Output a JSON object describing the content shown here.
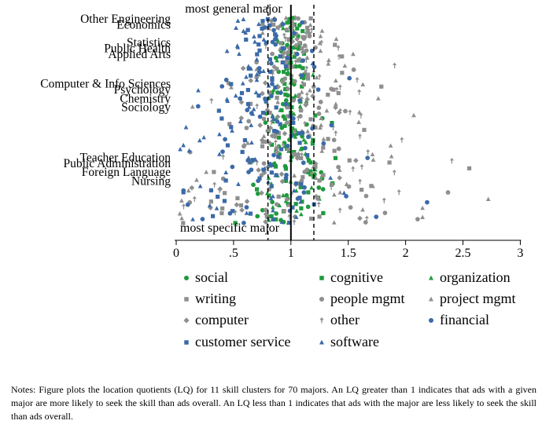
{
  "chart_data": {
    "type": "scatter",
    "xlim": [
      0,
      3.1
    ],
    "x_ticks": [
      0,
      0.5,
      1,
      1.5,
      2,
      2.5,
      3
    ],
    "x_tick_labels": [
      "0",
      ".5",
      "1",
      "1.5",
      "2",
      "2.5",
      "3"
    ],
    "grid": false,
    "reference_lines": [
      {
        "x": 1,
        "style": "solid",
        "label": ""
      },
      {
        "x": 0.8,
        "style": "dashed",
        "label": ""
      },
      {
        "x": 1.2,
        "style": "dashed",
        "label": ""
      }
    ],
    "annotations": {
      "top": "most general major",
      "bottom": "most specific major"
    },
    "num_majors": 70,
    "major_labels": [
      {
        "label": "Other Engineering",
        "rank": 1
      },
      {
        "label": "Economics",
        "rank": 3
      },
      {
        "label": "Statistics",
        "rank": 9
      },
      {
        "label": "Public Health",
        "rank": 11
      },
      {
        "label": "Applied Arts",
        "rank": 13
      },
      {
        "label": "Computer & Info Sciences",
        "rank": 23
      },
      {
        "label": "Psychology",
        "rank": 25
      },
      {
        "label": "Chemistry",
        "rank": 28
      },
      {
        "label": "Sociology",
        "rank": 31
      },
      {
        "label": "Teacher Education",
        "rank": 48
      },
      {
        "label": "Public Administration",
        "rank": 50
      },
      {
        "label": "Foreign Language",
        "rank": 53
      },
      {
        "label": "Nursing",
        "rank": 56
      }
    ],
    "series": [
      {
        "name": "social",
        "marker": "circle",
        "color": "#1f9a3c",
        "center": 1.0,
        "spread": 0.14
      },
      {
        "name": "cognitive",
        "marker": "square",
        "color": "#1f9a3c",
        "center": 1.02,
        "spread": 0.13
      },
      {
        "name": "organization",
        "marker": "triangle",
        "color": "#1f9a3c",
        "center": 0.98,
        "spread": 0.12
      },
      {
        "name": "writing",
        "marker": "square",
        "color": "#8f8f8f",
        "center": 1.1,
        "spread": 0.3
      },
      {
        "name": "people mgmt",
        "marker": "circle",
        "color": "#8f8f8f",
        "center": 1.0,
        "spread": 0.3
      },
      {
        "name": "project mgmt",
        "marker": "triangle",
        "color": "#8f8f8f",
        "center": 1.2,
        "spread": 0.45
      },
      {
        "name": "computer",
        "marker": "diamond",
        "color": "#8f8f8f",
        "center": 0.95,
        "spread": 0.28
      },
      {
        "name": "other",
        "marker": "arrow",
        "color": "#8f8f8f",
        "center": 1.1,
        "spread": 0.42
      },
      {
        "name": "financial",
        "marker": "circle",
        "color": "#3b6aa8",
        "center": 0.9,
        "spread": 0.35
      },
      {
        "name": "customer service",
        "marker": "square",
        "color": "#3b6aa8",
        "center": 0.75,
        "spread": 0.2
      },
      {
        "name": "software",
        "marker": "triangle",
        "color": "#3b6aa8",
        "center": 0.6,
        "spread": 0.3
      }
    ]
  },
  "notes": "Notes: Figure plots the location quotients (LQ) for 11 skill clusters for 70 majors. An LQ greater than 1 indicates that ads with a given major are more likely to seek the skill than ads overall. An LQ less than 1 indicates that ads with the major are less likely to seek the skill than ads overall."
}
